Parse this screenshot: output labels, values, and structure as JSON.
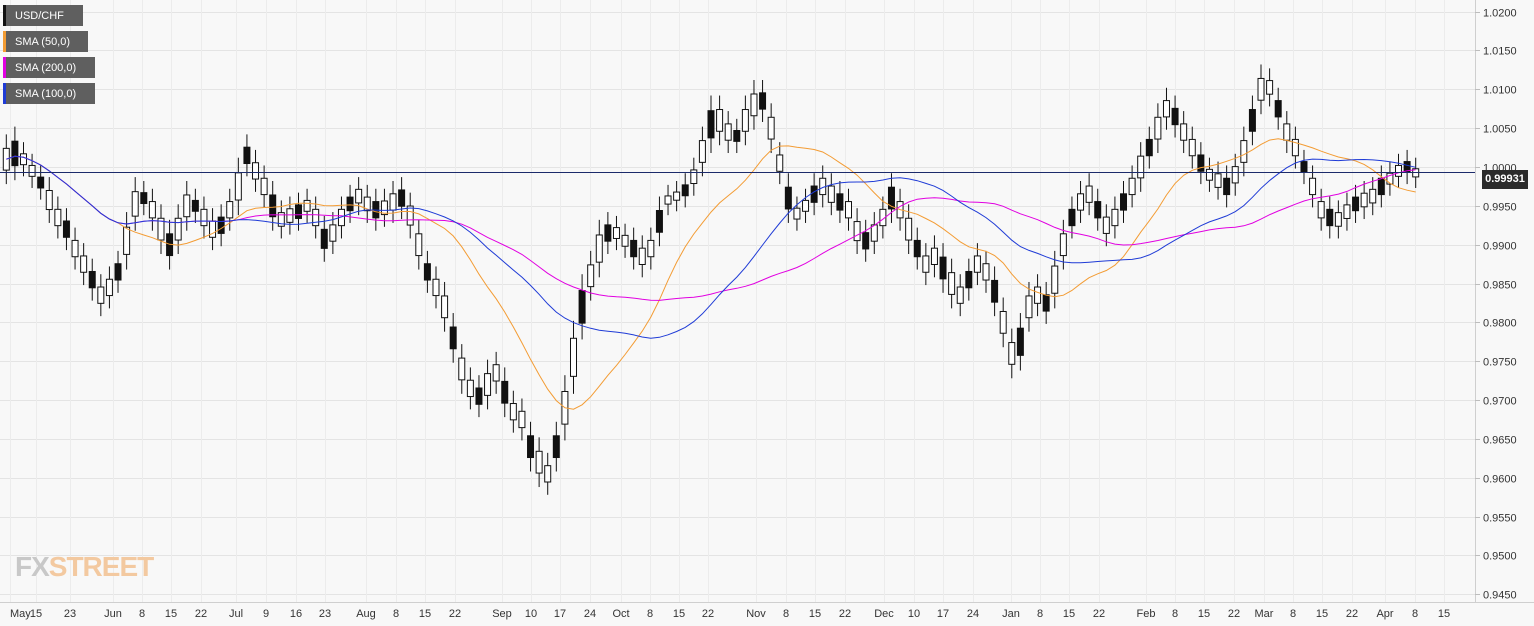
{
  "chart_data": {
    "type": "candlestick",
    "symbol": "USD/CHF",
    "indicators": [
      {
        "name": "SMA (50,0)",
        "color": "#f39c34"
      },
      {
        "name": "SMA (200,0)",
        "color": "#e100e1"
      },
      {
        "name": "SMA (100,0)",
        "color": "#1f3bd6"
      }
    ],
    "last_price": "0.99931",
    "yticks": [
      "1.0200",
      "1.0150",
      "1.0100",
      "1.0050",
      "1.0000",
      "0.9950",
      "0.9900",
      "0.9850",
      "0.9800",
      "0.9750",
      "0.9700",
      "0.9650",
      "0.9600",
      "0.9550",
      "0.9500",
      "0.9450"
    ],
    "ylim": [
      0.944,
      1.0215
    ],
    "xticks": [
      "May",
      "15",
      "23",
      "Jun",
      "8",
      "15",
      "22",
      "Jul",
      "9",
      "16",
      "23",
      "Aug",
      "8",
      "15",
      "22",
      "Sep",
      "10",
      "17",
      "24",
      "Oct",
      "8",
      "15",
      "22",
      "Nov",
      "8",
      "15",
      "22",
      "Dec",
      "10",
      "17",
      "24",
      "Jan",
      "8",
      "15",
      "22",
      "Feb",
      "8",
      "15",
      "22",
      "Mar",
      "8",
      "15",
      "22",
      "Apr",
      "8",
      "15"
    ],
    "price_path": [
      [
        0.999,
        1.003
      ],
      [
        0.9995,
        1.004
      ],
      [
        1.0,
        1.002
      ],
      [
        0.9985,
        1.0005
      ],
      [
        0.997,
        0.999
      ],
      [
        0.994,
        0.9975
      ],
      [
        0.992,
        0.995
      ],
      [
        0.9905,
        0.9935
      ],
      [
        0.988,
        0.991
      ],
      [
        0.986,
        0.989
      ],
      [
        0.984,
        0.987
      ],
      [
        0.982,
        0.985
      ],
      [
        0.983,
        0.986
      ],
      [
        0.985,
        0.988
      ],
      [
        0.988,
        0.993
      ],
      [
        0.993,
        0.9975
      ],
      [
        0.995,
        0.997
      ],
      [
        0.993,
        0.996
      ],
      [
        0.99,
        0.994
      ],
      [
        0.988,
        0.992
      ],
      [
        0.99,
        0.994
      ],
      [
        0.993,
        0.997
      ],
      [
        0.994,
        0.996
      ],
      [
        0.992,
        0.995
      ],
      [
        0.9905,
        0.9935
      ],
      [
        0.991,
        0.994
      ],
      [
        0.993,
        0.996
      ],
      [
        0.995,
        1.0
      ],
      [
        1.0,
        1.003
      ],
      [
        0.998,
        1.001
      ],
      [
        0.996,
        0.999
      ],
      [
        0.993,
        0.997
      ],
      [
        0.992,
        0.9945
      ],
      [
        0.9925,
        0.995
      ],
      [
        0.993,
        0.9955
      ],
      [
        0.994,
        0.996
      ],
      [
        0.992,
        0.995
      ],
      [
        0.989,
        0.9925
      ],
      [
        0.99,
        0.993
      ],
      [
        0.992,
        0.995
      ],
      [
        0.994,
        0.9965
      ],
      [
        0.995,
        0.9975
      ],
      [
        0.994,
        0.9965
      ],
      [
        0.993,
        0.996
      ],
      [
        0.9935,
        0.996
      ],
      [
        0.994,
        0.997
      ],
      [
        0.9945,
        0.9975
      ],
      [
        0.992,
        0.9955
      ],
      [
        0.988,
        0.992
      ],
      [
        0.985,
        0.988
      ],
      [
        0.983,
        0.986
      ],
      [
        0.98,
        0.984
      ],
      [
        0.976,
        0.98
      ],
      [
        0.972,
        0.976
      ],
      [
        0.97,
        0.973
      ],
      [
        0.969,
        0.972
      ],
      [
        0.97,
        0.974
      ],
      [
        0.972,
        0.975
      ],
      [
        0.969,
        0.973
      ],
      [
        0.967,
        0.97
      ],
      [
        0.966,
        0.969
      ],
      [
        0.962,
        0.966
      ],
      [
        0.96,
        0.964
      ],
      [
        0.959,
        0.962
      ],
      [
        0.962,
        0.966
      ],
      [
        0.966,
        0.972
      ],
      [
        0.972,
        0.979
      ],
      [
        0.979,
        0.985
      ],
      [
        0.984,
        0.988
      ],
      [
        0.987,
        0.992
      ],
      [
        0.99,
        0.993
      ],
      [
        0.9905,
        0.9925
      ],
      [
        0.9895,
        0.9915
      ],
      [
        0.988,
        0.991
      ],
      [
        0.987,
        0.99
      ],
      [
        0.988,
        0.991
      ],
      [
        0.991,
        0.995
      ],
      [
        0.995,
        0.9965
      ],
      [
        0.9955,
        0.997
      ],
      [
        0.996,
        0.998
      ],
      [
        0.9975,
        1.0
      ],
      [
        1.0,
        1.004
      ],
      [
        1.003,
        1.008
      ],
      [
        1.004,
        1.008
      ],
      [
        1.003,
        1.006
      ],
      [
        1.003,
        1.005
      ],
      [
        1.004,
        1.008
      ],
      [
        1.006,
        1.01
      ],
      [
        1.007,
        1.01
      ],
      [
        1.003,
        1.007
      ],
      [
        0.999,
        1.002
      ],
      [
        0.994,
        0.998
      ],
      [
        0.993,
        0.995
      ],
      [
        0.994,
        0.996
      ],
      [
        0.995,
        0.998
      ],
      [
        0.996,
        0.999
      ],
      [
        0.995,
        0.998
      ],
      [
        0.994,
        0.997
      ],
      [
        0.993,
        0.996
      ],
      [
        0.99,
        0.9935
      ],
      [
        0.989,
        0.992
      ],
      [
        0.99,
        0.993
      ],
      [
        0.992,
        0.995
      ],
      [
        0.994,
        0.998
      ],
      [
        0.993,
        0.996
      ],
      [
        0.99,
        0.994
      ],
      [
        0.988,
        0.991
      ],
      [
        0.986,
        0.989
      ],
      [
        0.987,
        0.99
      ],
      [
        0.985,
        0.989
      ],
      [
        0.983,
        0.987
      ],
      [
        0.982,
        0.985
      ],
      [
        0.984,
        0.987
      ],
      [
        0.986,
        0.989
      ],
      [
        0.985,
        0.988
      ],
      [
        0.982,
        0.986
      ],
      [
        0.978,
        0.982
      ],
      [
        0.974,
        0.978
      ],
      [
        0.975,
        0.98
      ],
      [
        0.98,
        0.984
      ],
      [
        0.982,
        0.985
      ],
      [
        0.981,
        0.984
      ],
      [
        0.983,
        0.988
      ],
      [
        0.988,
        0.992
      ],
      [
        0.992,
        0.995
      ],
      [
        0.994,
        0.997
      ],
      [
        0.995,
        0.998
      ],
      [
        0.993,
        0.996
      ],
      [
        0.991,
        0.994
      ],
      [
        0.992,
        0.995
      ],
      [
        0.994,
        0.997
      ],
      [
        0.996,
        0.999
      ],
      [
        0.998,
        1.002
      ],
      [
        1.001,
        1.004
      ],
      [
        1.003,
        1.007
      ],
      [
        1.006,
        1.009
      ],
      [
        1.005,
        1.008
      ],
      [
        1.003,
        1.006
      ],
      [
        1.001,
        1.004
      ],
      [
        0.999,
        1.002
      ],
      [
        0.998,
        1.0
      ],
      [
        0.997,
        0.9995
      ],
      [
        0.996,
        0.999
      ],
      [
        0.9975,
        1.0005
      ],
      [
        1.0,
        1.004
      ],
      [
        1.004,
        1.008
      ],
      [
        1.008,
        1.012
      ],
      [
        1.009,
        1.0115
      ],
      [
        1.006,
        1.009
      ],
      [
        1.003,
        1.006
      ],
      [
        1.001,
        1.004
      ],
      [
        0.999,
        1.001
      ],
      [
        0.996,
        0.999
      ],
      [
        0.993,
        0.996
      ],
      [
        0.992,
        0.995
      ],
      [
        0.992,
        0.9945
      ],
      [
        0.993,
        0.9955
      ],
      [
        0.994,
        0.9965
      ],
      [
        0.9945,
        0.997
      ],
      [
        0.995,
        0.9975
      ],
      [
        0.996,
        0.999
      ],
      [
        0.9975,
        0.9995
      ],
      [
        0.9985,
        1.0005
      ],
      [
        0.999,
        1.001
      ],
      [
        0.9985,
        1.0
      ]
    ]
  }
}
